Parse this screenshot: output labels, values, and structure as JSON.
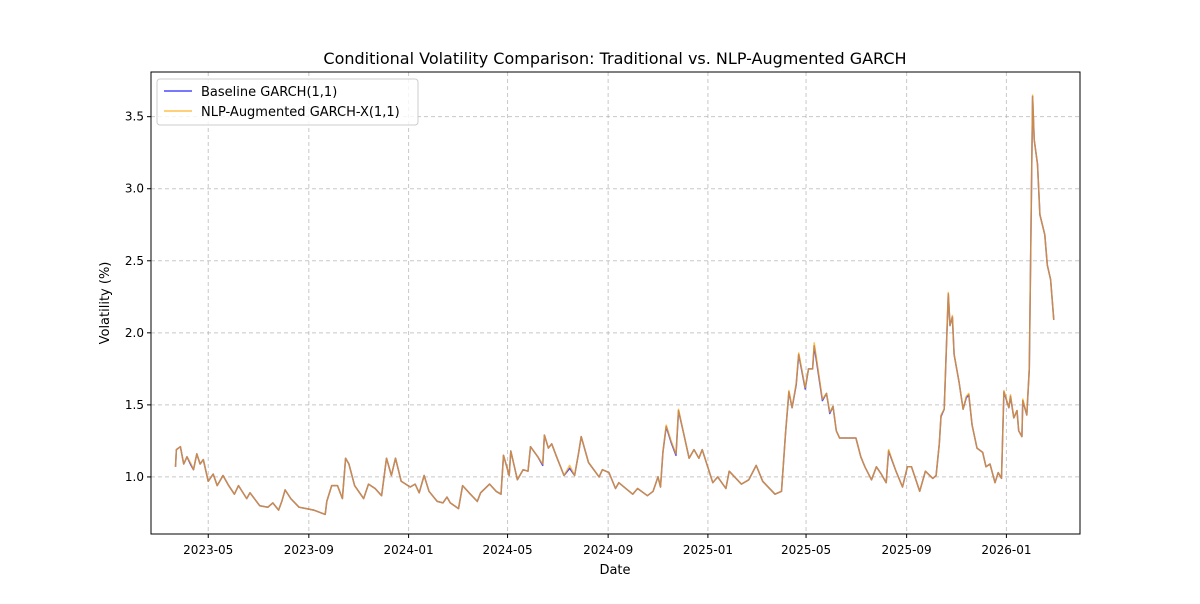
{
  "chart_data": {
    "type": "line",
    "title": "Conditional Volatility Comparison: Traditional vs. NLP-Augmented GARCH",
    "xlabel": "Date",
    "ylabel": "Volatility (%)",
    "ylim": [
      0.604,
      3.81
    ],
    "xlim": [
      "2023-02-20",
      "2026-04-01"
    ],
    "grid": true,
    "legend_position": "top-left",
    "x_ticks": [
      "2023-05",
      "2023-09",
      "2024-01",
      "2024-05",
      "2024-09",
      "2025-01",
      "2025-05",
      "2025-09",
      "2026-01"
    ],
    "y_ticks": [
      "1.0",
      "1.5",
      "2.0",
      "2.5",
      "3.0",
      "3.5"
    ],
    "x": [
      "2023-03-22",
      "2023-03-23",
      "2023-03-28",
      "2023-04-01",
      "2023-04-05",
      "2023-04-10",
      "2023-04-13",
      "2023-04-17",
      "2023-04-21",
      "2023-04-25",
      "2023-05-01",
      "2023-05-07",
      "2023-05-12",
      "2023-05-19",
      "2023-05-26",
      "2023-06-02",
      "2023-06-07",
      "2023-06-17",
      "2023-06-21",
      "2023-07-03",
      "2023-07-13",
      "2023-07-19",
      "2023-07-26",
      "2023-07-30",
      "2023-08-03",
      "2023-08-10",
      "2023-08-20",
      "2023-08-29",
      "2023-09-07",
      "2023-09-21",
      "2023-09-23",
      "2023-09-29",
      "2023-10-06",
      "2023-10-12",
      "2023-10-16",
      "2023-10-20",
      "2023-10-27",
      "2023-11-07",
      "2023-11-13",
      "2023-11-21",
      "2023-11-29",
      "2023-12-05",
      "2023-12-11",
      "2023-12-16",
      "2023-12-23",
      "2024-01-03",
      "2024-01-09",
      "2024-01-14",
      "2024-01-20",
      "2024-01-26",
      "2024-02-05",
      "2024-02-12",
      "2024-02-17",
      "2024-02-21",
      "2024-03-02",
      "2024-03-07",
      "2024-03-15",
      "2024-03-25",
      "2024-03-29",
      "2024-04-09",
      "2024-04-17",
      "2024-04-23",
      "2024-04-26",
      "2024-05-03",
      "2024-05-05",
      "2024-05-13",
      "2024-05-20",
      "2024-05-26",
      "2024-05-29",
      "2024-06-07",
      "2024-06-13",
      "2024-06-15",
      "2024-06-20",
      "2024-06-24",
      "2024-06-30",
      "2024-07-09",
      "2024-07-16",
      "2024-07-22",
      "2024-07-27",
      "2024-07-30",
      "2024-08-08",
      "2024-08-21",
      "2024-08-25",
      "2024-09-02",
      "2024-09-10",
      "2024-09-14",
      "2024-10-01",
      "2024-10-07",
      "2024-10-19",
      "2024-10-26",
      "2024-11-01",
      "2024-11-04",
      "2024-11-07",
      "2024-11-11",
      "2024-11-17",
      "2024-11-23",
      "2024-11-26",
      "2024-12-02",
      "2024-12-09",
      "2024-12-15",
      "2024-12-21",
      "2024-12-25",
      "2025-01-07",
      "2025-01-13",
      "2025-01-23",
      "2025-01-27",
      "2025-02-11",
      "2025-02-20",
      "2025-03-01",
      "2025-03-09",
      "2025-03-24",
      "2025-04-01",
      "2025-04-06",
      "2025-04-10",
      "2025-04-14",
      "2025-04-19",
      "2025-04-22",
      "2025-04-30",
      "2025-05-04",
      "2025-05-09",
      "2025-05-11",
      "2025-05-21",
      "2025-05-26",
      "2025-05-30",
      "2025-06-03",
      "2025-06-07",
      "2025-06-11",
      "2025-07-01",
      "2025-07-07",
      "2025-07-12",
      "2025-07-20",
      "2025-07-26",
      "2025-08-01",
      "2025-08-07",
      "2025-08-10",
      "2025-08-19",
      "2025-08-27",
      "2025-09-02",
      "2025-09-07",
      "2025-09-17",
      "2025-09-24",
      "2025-10-03",
      "2025-10-07",
      "2025-10-11",
      "2025-10-13",
      "2025-10-17",
      "2025-10-22",
      "2025-10-24",
      "2025-10-27",
      "2025-10-29",
      "2025-11-04",
      "2025-11-09",
      "2025-11-13",
      "2025-11-16",
      "2025-11-20",
      "2025-11-26",
      "2025-12-03",
      "2025-12-07",
      "2025-12-12",
      "2025-12-18",
      "2025-12-22",
      "2025-12-26",
      "2025-12-29",
      "2026-01-04",
      "2026-01-06",
      "2026-01-10",
      "2026-01-14",
      "2026-01-16",
      "2026-01-20",
      "2026-01-21",
      "2026-01-26",
      "2026-01-29",
      "2026-02-02",
      "2026-02-04",
      "2026-02-08",
      "2026-02-11",
      "2026-02-17",
      "2026-02-20",
      "2026-02-24",
      "2026-02-28"
    ],
    "series": [
      {
        "name": "Baseline GARCH(1,1)",
        "color": "#0000ff",
        "values": [
          1.07,
          1.19,
          1.21,
          1.09,
          1.14,
          1.08,
          1.05,
          1.16,
          1.09,
          1.12,
          0.97,
          1.02,
          0.94,
          1.01,
          0.94,
          0.88,
          0.94,
          0.85,
          0.89,
          0.8,
          0.79,
          0.82,
          0.77,
          0.83,
          0.91,
          0.85,
          0.79,
          0.78,
          0.77,
          0.74,
          0.83,
          0.94,
          0.94,
          0.85,
          1.13,
          1.09,
          0.94,
          0.85,
          0.95,
          0.92,
          0.87,
          1.13,
          1.01,
          1.13,
          0.97,
          0.93,
          0.95,
          0.89,
          1.01,
          0.9,
          0.83,
          0.82,
          0.86,
          0.82,
          0.78,
          0.94,
          0.89,
          0.83,
          0.89,
          0.95,
          0.9,
          0.88,
          1.15,
          1.01,
          1.18,
          0.98,
          1.05,
          1.04,
          1.21,
          1.14,
          1.08,
          1.29,
          1.2,
          1.23,
          1.14,
          1.01,
          1.06,
          1.01,
          1.17,
          1.28,
          1.1,
          1.0,
          1.05,
          1.03,
          0.92,
          0.96,
          0.88,
          0.92,
          0.87,
          0.9,
          1.0,
          0.93,
          1.17,
          1.35,
          1.24,
          1.15,
          1.46,
          1.31,
          1.13,
          1.19,
          1.13,
          1.19,
          0.96,
          1.0,
          0.92,
          1.04,
          0.95,
          0.98,
          1.08,
          0.97,
          0.88,
          0.9,
          1.31,
          1.59,
          1.48,
          1.64,
          1.85,
          1.61,
          1.75,
          1.75,
          1.91,
          1.53,
          1.58,
          1.44,
          1.49,
          1.32,
          1.27,
          1.27,
          1.14,
          1.07,
          0.98,
          1.07,
          1.02,
          0.96,
          1.18,
          1.04,
          0.93,
          1.07,
          1.07,
          0.9,
          1.04,
          0.99,
          1.01,
          1.23,
          1.42,
          1.47,
          2.27,
          2.05,
          2.11,
          1.85,
          1.66,
          1.47,
          1.55,
          1.57,
          1.36,
          1.2,
          1.17,
          1.07,
          1.09,
          0.96,
          1.03,
          0.99,
          1.59,
          1.48,
          1.56,
          1.41,
          1.46,
          1.32,
          1.28,
          1.53,
          1.43,
          1.75,
          3.64,
          3.34,
          3.17,
          2.82,
          2.68,
          2.47,
          2.37,
          2.09
        ]
      },
      {
        "name": "NLP-Augmented GARCH-X(1,1)",
        "color": "#ffa500",
        "values": [
          1.07,
          1.19,
          1.21,
          1.09,
          1.14,
          1.09,
          1.05,
          1.16,
          1.09,
          1.12,
          0.97,
          1.02,
          0.94,
          1.01,
          0.94,
          0.88,
          0.94,
          0.85,
          0.89,
          0.8,
          0.79,
          0.82,
          0.77,
          0.83,
          0.91,
          0.85,
          0.79,
          0.78,
          0.77,
          0.74,
          0.83,
          0.94,
          0.94,
          0.85,
          1.13,
          1.09,
          0.94,
          0.85,
          0.95,
          0.92,
          0.87,
          1.13,
          1.01,
          1.13,
          0.97,
          0.93,
          0.95,
          0.89,
          1.01,
          0.9,
          0.83,
          0.82,
          0.86,
          0.82,
          0.78,
          0.94,
          0.89,
          0.83,
          0.89,
          0.95,
          0.9,
          0.88,
          1.15,
          1.01,
          1.18,
          0.98,
          1.05,
          1.04,
          1.21,
          1.14,
          1.09,
          1.29,
          1.2,
          1.23,
          1.14,
          1.01,
          1.08,
          1.01,
          1.17,
          1.28,
          1.1,
          1.0,
          1.05,
          1.03,
          0.92,
          0.96,
          0.88,
          0.92,
          0.87,
          0.9,
          1.0,
          0.93,
          1.17,
          1.36,
          1.25,
          1.16,
          1.47,
          1.31,
          1.13,
          1.19,
          1.13,
          1.19,
          0.96,
          1.0,
          0.92,
          1.04,
          0.95,
          0.98,
          1.08,
          0.97,
          0.88,
          0.9,
          1.31,
          1.6,
          1.48,
          1.65,
          1.86,
          1.62,
          1.75,
          1.75,
          1.93,
          1.54,
          1.58,
          1.45,
          1.49,
          1.32,
          1.27,
          1.27,
          1.14,
          1.07,
          0.98,
          1.07,
          1.02,
          0.96,
          1.19,
          1.04,
          0.93,
          1.07,
          1.07,
          0.9,
          1.04,
          0.99,
          1.01,
          1.23,
          1.43,
          1.47,
          2.28,
          2.05,
          2.12,
          1.85,
          1.66,
          1.47,
          1.56,
          1.58,
          1.36,
          1.2,
          1.17,
          1.07,
          1.09,
          0.96,
          1.03,
          0.99,
          1.6,
          1.48,
          1.57,
          1.41,
          1.46,
          1.32,
          1.28,
          1.54,
          1.43,
          1.76,
          3.65,
          3.34,
          3.17,
          2.82,
          2.68,
          2.47,
          2.37,
          2.09
        ]
      }
    ]
  }
}
